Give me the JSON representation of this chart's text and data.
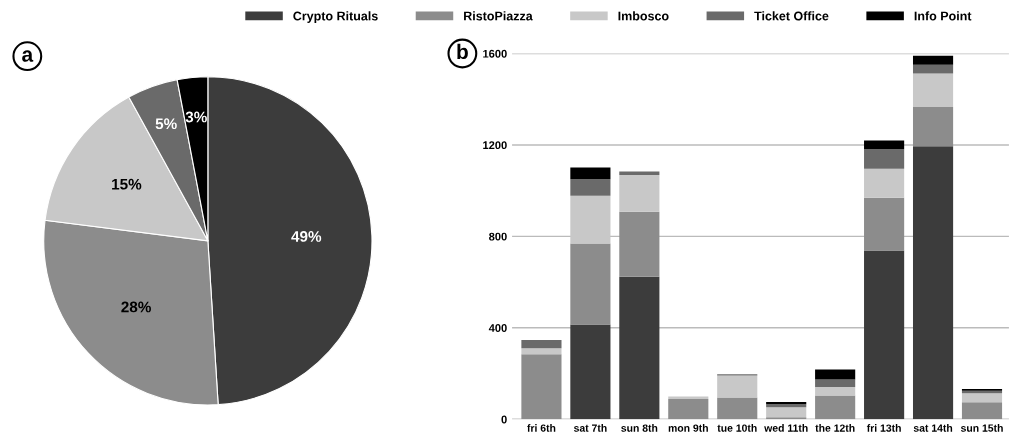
{
  "chart_data": [
    {
      "type": "pie",
      "annotations": [
        "a"
      ],
      "categories": [
        null,
        null,
        null,
        null,
        null
      ],
      "values": [
        49,
        28,
        15,
        5,
        3
      ],
      "value_labels": [
        "49%",
        "28%",
        "15%",
        "5%",
        "3%"
      ],
      "colors": [
        "#3c3c3c",
        "#8c8c8c",
        "#c8c8c8",
        "#6a6a6a",
        "#000000"
      ]
    },
    {
      "type": "bar",
      "stacked": true,
      "annotations": [
        "b"
      ],
      "legend": "top",
      "grid": "y",
      "categories": [
        "fri 6th",
        "sat 7th",
        "sun 8th",
        "mon 9th",
        "tue 10th",
        "wed 11th",
        "the 12th",
        "fri 13th",
        "sat 14th",
        "sun 15th"
      ],
      "ylim": [
        0,
        1600
      ],
      "yticks": [
        0,
        400,
        800,
        1200,
        1600
      ],
      "series": [
        {
          "name": "Crypto Rituals",
          "color": "#3c3c3c",
          "values": [
            0,
            414,
            623,
            0,
            0,
            0,
            0,
            738,
            1194,
            0
          ]
        },
        {
          "name": "RistoPiazza",
          "color": "#8c8c8c",
          "values": [
            284,
            355,
            285,
            89,
            95,
            9,
            104,
            231,
            172,
            74
          ]
        },
        {
          "name": "Imbosco",
          "color": "#c8c8c8",
          "values": [
            27,
            209,
            161,
            10,
            96,
            44,
            37,
            127,
            147,
            40
          ]
        },
        {
          "name": "Ticket Office",
          "color": "#6a6a6a",
          "values": [
            36,
            72,
            15,
            0,
            6,
            13,
            33,
            85,
            38,
            11
          ]
        },
        {
          "name": "Info Point",
          "color": "#000000",
          "values": [
            0,
            51,
            0,
            0,
            0,
            9,
            44,
            39,
            39,
            7
          ]
        }
      ]
    }
  ]
}
